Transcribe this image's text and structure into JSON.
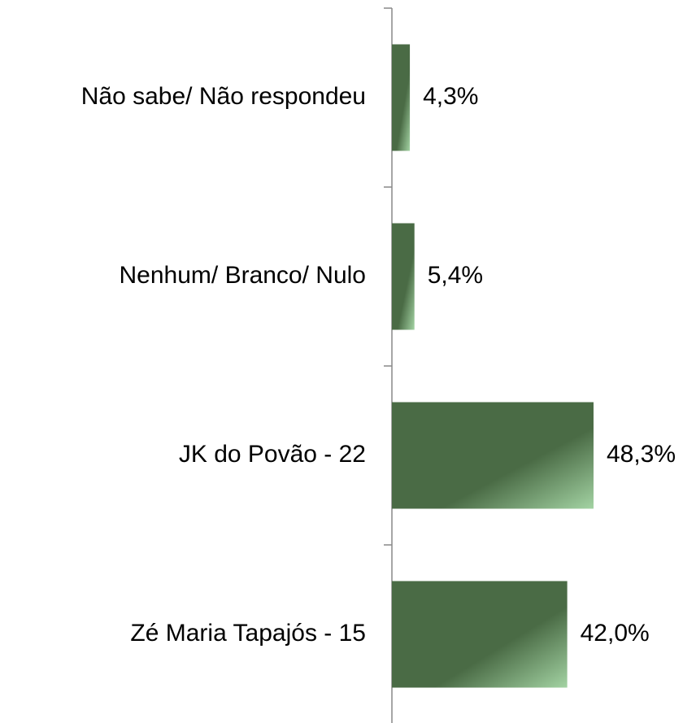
{
  "chart_data": {
    "type": "bar",
    "orientation": "horizontal",
    "categories": [
      "Não sabe/ Não respondeu",
      "Nenhum/ Branco/ Nulo",
      "JK do Povão - 22",
      "Zé Maria Tapajós - 15"
    ],
    "values": [
      4.3,
      5.4,
      48.3,
      42.0
    ],
    "value_labels": [
      "4,3%",
      "5,4%",
      "48,3%",
      "42,0%"
    ],
    "color": "#4a6b45"
  }
}
